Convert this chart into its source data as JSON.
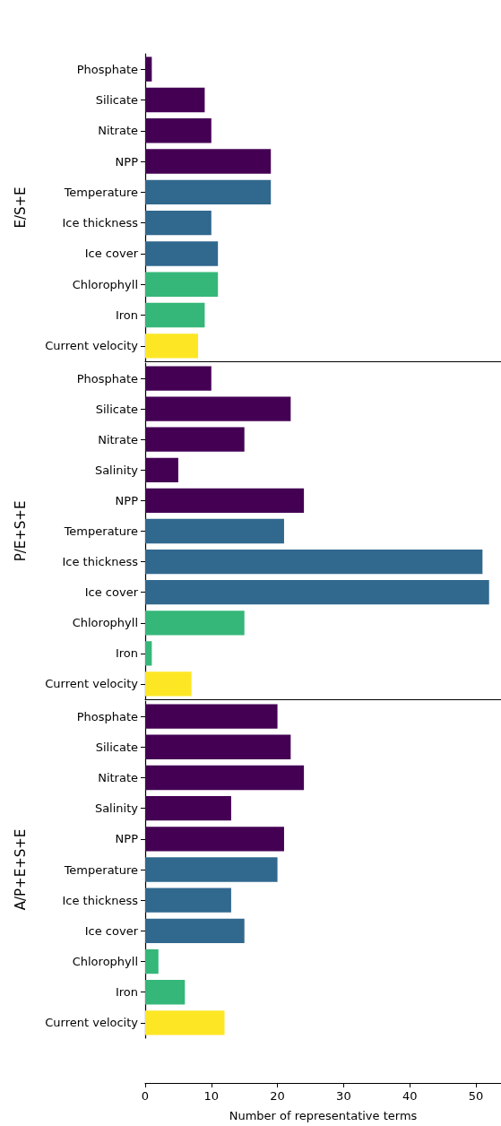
{
  "chart_data": [
    {
      "type": "bar",
      "orientation": "horizontal",
      "ylabel": "E/S+E",
      "categories": [
        "Phosphate",
        "Silicate",
        "Nitrate",
        "NPP",
        "Temperature",
        "Ice thickness",
        "Ice cover",
        "Chlorophyll",
        "Iron",
        "Current velocity"
      ],
      "values": [
        1,
        9,
        10,
        19,
        19,
        10,
        11,
        11,
        9,
        8
      ],
      "colors": [
        "#440154",
        "#440154",
        "#440154",
        "#440154",
        "#31688e",
        "#31688e",
        "#31688e",
        "#35b779",
        "#35b779",
        "#fde725"
      ],
      "xlim": [
        0,
        53.8
      ],
      "tick_labels": "y"
    },
    {
      "type": "bar",
      "orientation": "horizontal",
      "ylabel": "P/E+S+E",
      "categories": [
        "Phosphate",
        "Silicate",
        "Nitrate",
        "Salinity",
        "NPP",
        "Temperature",
        "Ice thickness",
        "Ice cover",
        "Chlorophyll",
        "Iron",
        "Current velocity"
      ],
      "values": [
        10,
        22,
        15,
        5,
        24,
        21,
        51,
        52,
        15,
        1,
        7
      ],
      "colors": [
        "#440154",
        "#440154",
        "#440154",
        "#440154",
        "#440154",
        "#31688e",
        "#31688e",
        "#31688e",
        "#35b779",
        "#35b779",
        "#fde725"
      ],
      "xlim": [
        0,
        53.8
      ],
      "tick_labels": "y"
    },
    {
      "type": "bar",
      "orientation": "horizontal",
      "ylabel": "A/P+E+S+E",
      "xlabel": "Number of representative terms",
      "categories": [
        "Phosphate",
        "Silicate",
        "Nitrate",
        "Salinity",
        "NPP",
        "Temperature",
        "Ice thickness",
        "Ice cover",
        "Chlorophyll",
        "Iron",
        "Current velocity"
      ],
      "values": [
        20,
        22,
        24,
        13,
        21,
        20,
        13,
        15,
        2,
        6,
        12
      ],
      "colors": [
        "#440154",
        "#440154",
        "#440154",
        "#440154",
        "#440154",
        "#31688e",
        "#31688e",
        "#31688e",
        "#35b779",
        "#35b779",
        "#fde725"
      ],
      "xlim": [
        0,
        53.8
      ],
      "xticks": [
        0,
        10,
        20,
        30,
        40,
        50
      ]
    }
  ]
}
